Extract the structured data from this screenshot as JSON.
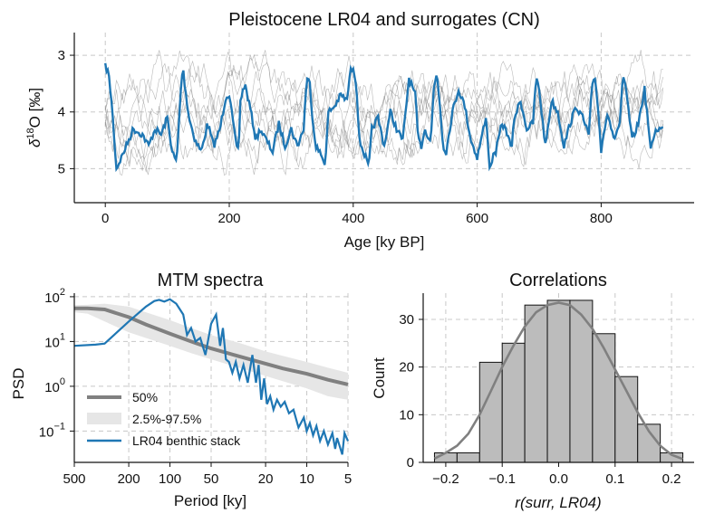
{
  "chart_data": [
    {
      "type": "line",
      "title": "Pleistocene LR04 and surrogates (CN)",
      "xlabel": "Age [ky BP]",
      "ylabel_base": "δ",
      "ylabel_sup": "18",
      "ylabel_rest": "O [‰]",
      "xlim": [
        -50,
        950
      ],
      "ylim": [
        5.6,
        2.6
      ],
      "y_inverted": true,
      "xticks": [
        0,
        200,
        400,
        600,
        800
      ],
      "yticks": [
        3,
        4,
        5
      ],
      "grid": true,
      "series_colors": {
        "lr04": "#1f77b4",
        "surrogates": "#7f7f7f"
      },
      "surrogate_count": 8,
      "lr04_keypoints": {
        "x": [
          0,
          5,
          10,
          18,
          30,
          45,
          60,
          70,
          80,
          90,
          100,
          108,
          115,
          122,
          125,
          128,
          135,
          145,
          155,
          165,
          175,
          185,
          195,
          200,
          210,
          215,
          218,
          225,
          235,
          243,
          250,
          260,
          270,
          280,
          290,
          300,
          310,
          320,
          325,
          330,
          335,
          340,
          350,
          355,
          360,
          370,
          380,
          390,
          395,
          400,
          405,
          410,
          420,
          425,
          430,
          440,
          450,
          460,
          470,
          480,
          490,
          500,
          505,
          510,
          515,
          525,
          530,
          535,
          540,
          545,
          550,
          560,
          570,
          580,
          590,
          600,
          610,
          615,
          620,
          625,
          630,
          640,
          650,
          655,
          660,
          670,
          680,
          690,
          695,
          700,
          705,
          710,
          715,
          720,
          730,
          740,
          750,
          760,
          770,
          780,
          785,
          790,
          795,
          800,
          805,
          810,
          815,
          820,
          830,
          835,
          840,
          850,
          860,
          870,
          875,
          880,
          885,
          890,
          900
        ],
        "y": [
          3.2,
          3.3,
          3.8,
          5.0,
          4.7,
          4.3,
          4.4,
          4.6,
          4.3,
          4.4,
          4.1,
          4.7,
          4.9,
          3.6,
          3.2,
          3.5,
          4.1,
          4.5,
          4.7,
          4.2,
          4.6,
          4.3,
          3.7,
          3.7,
          4.5,
          4.7,
          3.8,
          3.5,
          4.0,
          4.5,
          4.3,
          4.5,
          4.7,
          4.2,
          4.6,
          4.3,
          4.6,
          4.3,
          3.4,
          3.5,
          4.2,
          4.6,
          4.8,
          4.9,
          4.0,
          3.9,
          3.7,
          3.8,
          3.3,
          3.2,
          3.5,
          4.5,
          4.8,
          5.0,
          4.3,
          4.1,
          4.6,
          4.0,
          4.3,
          4.5,
          3.4,
          3.7,
          4.5,
          4.6,
          4.3,
          4.5,
          3.6,
          3.3,
          3.9,
          4.6,
          4.7,
          4.0,
          3.6,
          3.9,
          4.5,
          4.8,
          4.3,
          4.1,
          5.0,
          4.8,
          4.7,
          4.2,
          4.4,
          4.7,
          4.1,
          3.8,
          4.3,
          4.2,
          3.4,
          3.6,
          4.1,
          4.6,
          4.2,
          3.8,
          4.0,
          4.6,
          4.2,
          3.9,
          4.1,
          4.4,
          3.6,
          3.4,
          3.9,
          4.7,
          4.3,
          4.0,
          4.2,
          4.5,
          4.2,
          3.4,
          3.6,
          4.5,
          4.2,
          3.6,
          4.1,
          4.7,
          4.4,
          4.3,
          4.3
        ]
      }
    },
    {
      "type": "line",
      "title": "MTM spectra",
      "xlabel": "Period [ky]",
      "ylabel": "PSD",
      "x_scale": "log-inverted-period",
      "y_scale": "log",
      "xlim_period": [
        500,
        5
      ],
      "ylim": [
        0.02,
        120
      ],
      "xtick_labels": [
        "500",
        "200",
        "100",
        "50",
        "20",
        "10",
        "5"
      ],
      "xtick_values": [
        500,
        200,
        100,
        50,
        20,
        10,
        5
      ],
      "ytick_values": [
        0.1,
        1,
        10,
        100
      ],
      "ytick_base": [
        "10",
        "10",
        "10",
        "10"
      ],
      "ytick_exp": [
        "−1",
        "0",
        "1",
        "2"
      ],
      "grid": true,
      "legend": {
        "placement": "lower-left",
        "entries": [
          "50%",
          "2.5%-97.5%",
          "LR04 benthic stack"
        ],
        "colors": [
          "#808080",
          "#e6e6e6",
          "#1f77b4"
        ]
      },
      "median": {
        "period": [
          500,
          400,
          300,
          200,
          150,
          100,
          70,
          50,
          30,
          20,
          15,
          10,
          7,
          5
        ],
        "psd": [
          55,
          55,
          52,
          35,
          24,
          15,
          10,
          7,
          4.5,
          3.2,
          2.5,
          1.9,
          1.4,
          1.1
        ]
      },
      "band": {
        "period": [
          500,
          400,
          300,
          200,
          150,
          100,
          70,
          50,
          30,
          20,
          15,
          10,
          7,
          5
        ],
        "low": [
          45,
          42,
          28,
          16,
          12,
          8,
          5.5,
          4,
          2.5,
          1.7,
          1.3,
          0.9,
          0.6,
          0.5
        ],
        "high": [
          65,
          66,
          70,
          60,
          45,
          30,
          20,
          14,
          9,
          6,
          4.8,
          3.5,
          2.6,
          2.0
        ]
      },
      "lr04": {
        "period": [
          500,
          350,
          300,
          250,
          200,
          150,
          130,
          120,
          110,
          100,
          90,
          80,
          75,
          70,
          65,
          60,
          55,
          50,
          46,
          43,
          41,
          39,
          37,
          35,
          33,
          31,
          29,
          27,
          25,
          23.5,
          22.5,
          21.5,
          20.5,
          19.5,
          18.5,
          17.5,
          16.5,
          15.5,
          14.5,
          13.5,
          12.5,
          11.5,
          10.5,
          10,
          9.5,
          9,
          8.5,
          8,
          7.5,
          7,
          6.5,
          6.2,
          6,
          5.8,
          5.5,
          5.3,
          5
        ],
        "psd": [
          8,
          8.5,
          9,
          15,
          28,
          60,
          80,
          85,
          78,
          88,
          70,
          40,
          14,
          20,
          10,
          12,
          5,
          25,
          40,
          8,
          20,
          4,
          3.5,
          2,
          3.5,
          1.5,
          3,
          1.2,
          5,
          1.2,
          3,
          0.5,
          1.5,
          0.4,
          0.6,
          0.3,
          0.5,
          0.35,
          0.45,
          0.25,
          0.3,
          0.12,
          0.2,
          0.1,
          0.15,
          0.08,
          0.13,
          0.06,
          0.1,
          0.05,
          0.09,
          0.04,
          0.07,
          0.05,
          0.03,
          0.09,
          0.06
        ]
      }
    },
    {
      "type": "bar",
      "title": "Correlations",
      "xlabel": "r(surr, LR04)",
      "ylabel": "Count",
      "xlim": [
        -0.24,
        0.24
      ],
      "ylim": [
        0,
        35.5
      ],
      "xtick_values": [
        -0.2,
        -0.1,
        0.0,
        0.1,
        0.2
      ],
      "xtick_labels": [
        "−0.2",
        "−0.1",
        "0.0",
        "0.1",
        "0.2"
      ],
      "ytick_values": [
        0,
        10,
        20,
        30
      ],
      "ytick_labels": [
        "0",
        "10",
        "20",
        "30"
      ],
      "grid": true,
      "bin_edges": [
        -0.22,
        -0.18,
        -0.14,
        -0.1,
        -0.06,
        -0.02,
        0.02,
        0.06,
        0.1,
        0.14,
        0.18,
        0.22
      ],
      "counts": [
        2,
        2,
        21,
        25,
        33,
        34,
        34,
        27,
        18,
        8,
        2
      ],
      "bar_color": "#bcbcbc",
      "kde": {
        "x": [
          -0.22,
          -0.2,
          -0.18,
          -0.16,
          -0.14,
          -0.12,
          -0.1,
          -0.08,
          -0.06,
          -0.04,
          -0.02,
          0.0,
          0.02,
          0.04,
          0.06,
          0.08,
          0.1,
          0.12,
          0.14,
          0.16,
          0.18,
          0.2,
          0.22
        ],
        "y": [
          0.8,
          2.0,
          3.5,
          6.0,
          10.0,
          15.0,
          20.0,
          24.5,
          28.5,
          31.5,
          33.0,
          33.5,
          33.0,
          31.0,
          28.0,
          24.0,
          19.5,
          15.0,
          10.5,
          6.5,
          3.5,
          1.6,
          0.7
        ]
      }
    }
  ]
}
